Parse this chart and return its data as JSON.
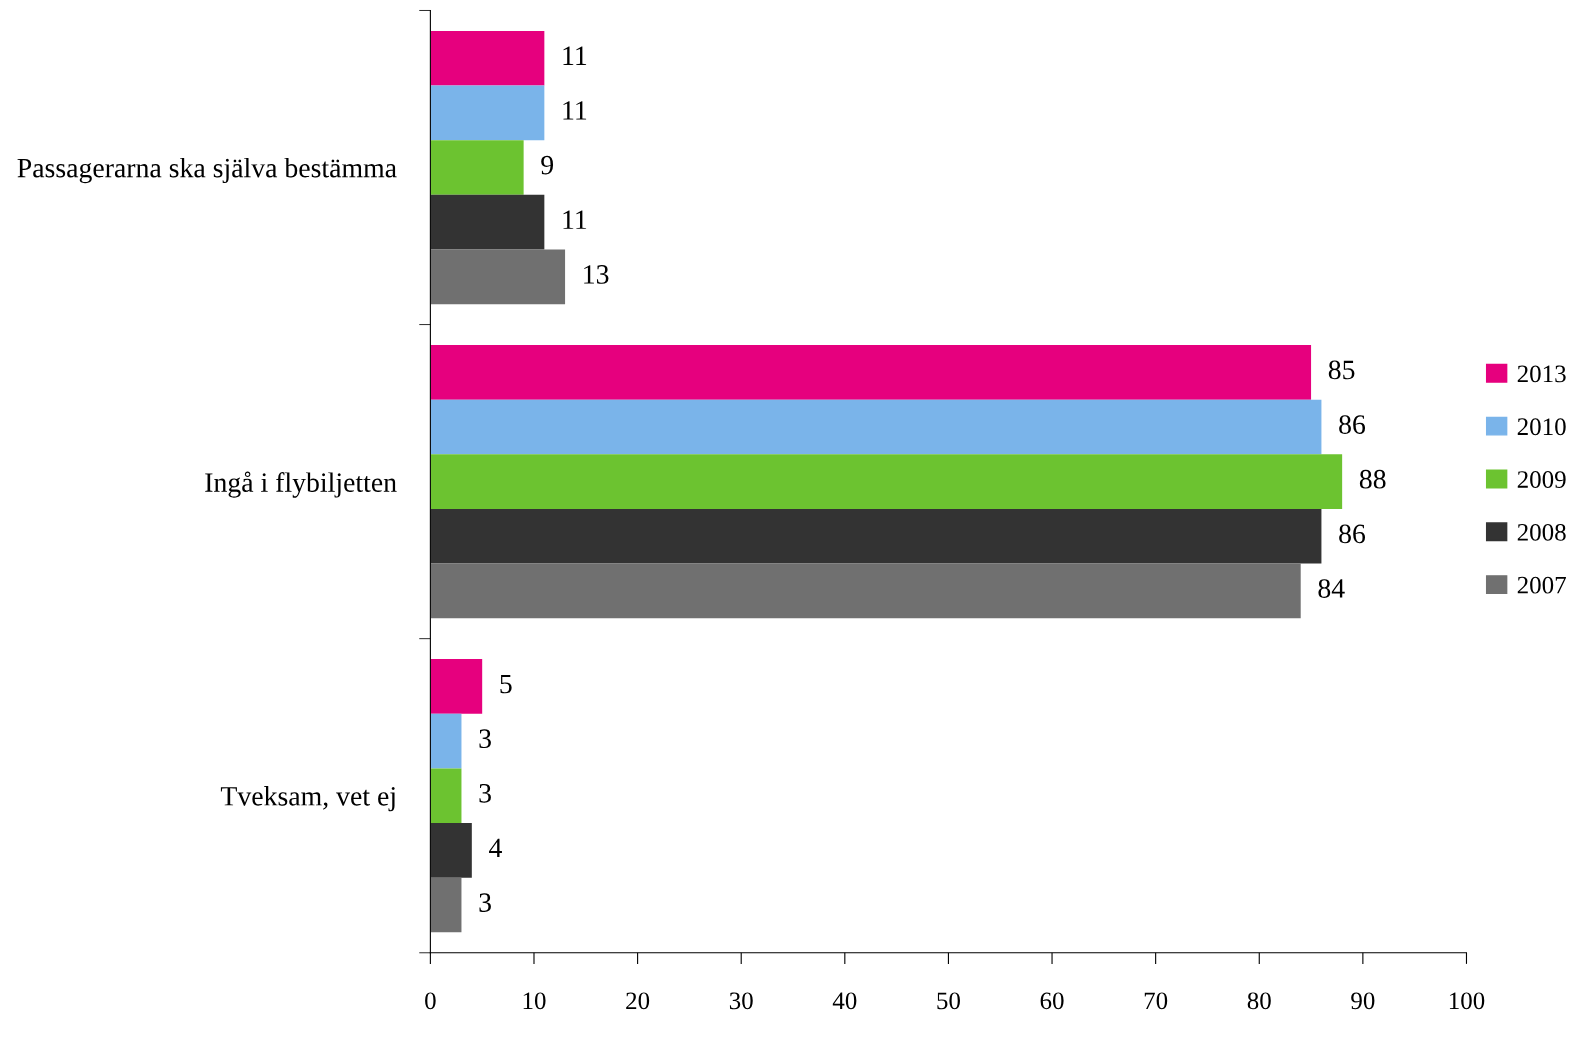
{
  "chart_data": {
    "type": "bar",
    "orientation": "horizontal",
    "categories": [
      "Passagerarna ska själva bestämma",
      "Ingå i flybiljetten",
      "Tveksam, vet ej"
    ],
    "series": [
      {
        "name": "2013",
        "color": "#e6007e",
        "values": [
          11,
          85,
          5
        ]
      },
      {
        "name": "2010",
        "color": "#7ab4ea",
        "values": [
          11,
          86,
          3
        ]
      },
      {
        "name": "2009",
        "color": "#6cc330",
        "values": [
          9,
          88,
          3
        ]
      },
      {
        "name": "2008",
        "color": "#333333",
        "values": [
          11,
          86,
          4
        ]
      },
      {
        "name": "2007",
        "color": "#707070",
        "values": [
          13,
          84,
          3
        ]
      }
    ],
    "xlim": [
      0,
      100
    ],
    "xticks": [
      0,
      10,
      20,
      30,
      40,
      50,
      60,
      70,
      80,
      90,
      100
    ],
    "data_labels": true,
    "legend": "right",
    "grid": false
  }
}
